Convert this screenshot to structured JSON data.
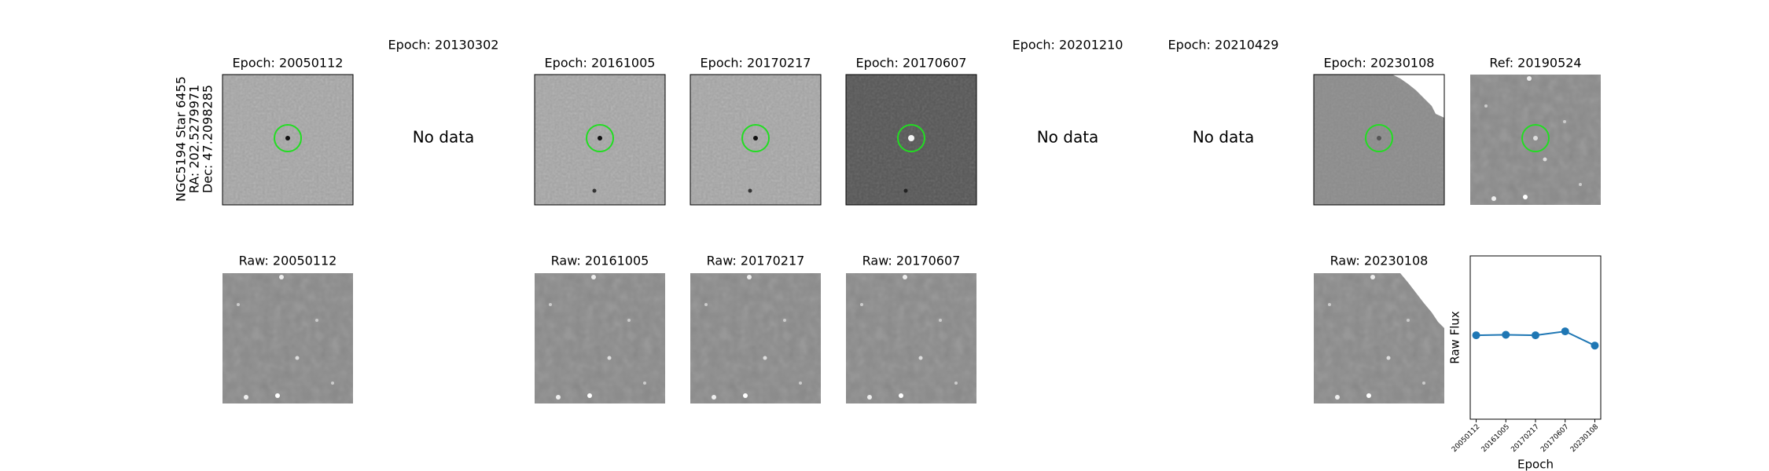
{
  "star_info": [
    "NGC5194 Star 6455",
    "RA: 202.5279971",
    "Dec: 47.2098285"
  ],
  "epoch_panels": [
    {
      "title": "Epoch: 20050112"
    },
    {
      "title": "Epoch: 20130302",
      "message": "No data"
    },
    {
      "title": "Epoch: 20161005"
    },
    {
      "title": "Epoch: 20170217"
    },
    {
      "title": "Epoch: 20170607"
    },
    {
      "title": "Epoch: 20201210",
      "message": "No data"
    },
    {
      "title": "Epoch: 20210429",
      "message": "No data"
    },
    {
      "title": "Epoch: 20230108"
    },
    {
      "title": "Ref: 20190524"
    }
  ],
  "raw_panels": [
    {
      "title": "Raw: 20050112"
    },
    {
      "title": "Raw: 20161005"
    },
    {
      "title": "Raw: 20170217"
    },
    {
      "title": "Raw: 20170607"
    },
    {
      "title": "Raw: 20230108"
    }
  ],
  "chart_data": {
    "type": "line",
    "xlabel": "Epoch",
    "ylabel": "Raw Flux",
    "categories": [
      "20050112",
      "20161005",
      "20170217",
      "20170607",
      "20230108"
    ],
    "series": [
      {
        "name": "Raw Flux",
        "color": "#1f77b4",
        "values": [
          0.514,
          0.517,
          0.514,
          0.538,
          0.451
        ]
      }
    ],
    "ylim": [
      0,
      1
    ]
  }
}
